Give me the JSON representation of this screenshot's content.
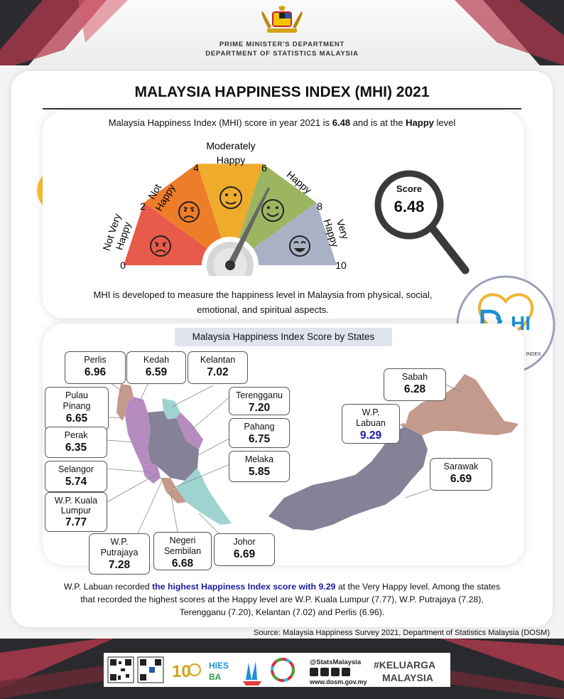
{
  "header": {
    "dept_line1": "PRIME MINISTER'S DEPARTMENT",
    "dept_line2": "DEPARTMENT OF STATISTICS MALAYSIA"
  },
  "title": "MALAYSIA HAPPINESS INDEX (MHI) 2021",
  "intro": {
    "prefix": "Malaysia Happiness Index (MHI) score in year 2021 is",
    "score": "6.48",
    "middle": "and is at the",
    "level": "Happy",
    "suffix": "level"
  },
  "gauge": {
    "value": 6.48,
    "min": 0,
    "max": 10,
    "ticks": [
      "0",
      "2",
      "4",
      "6",
      "8",
      "10"
    ],
    "bands": [
      {
        "label": "Not Very Happy",
        "color": "#e85a4a"
      },
      {
        "label": "Not Happy",
        "color": "#ee7d2a"
      },
      {
        "label": "Moderately Happy",
        "color": "#eeab2c"
      },
      {
        "label": "Happy",
        "color": "#9cb560"
      },
      {
        "label": "Very Happy",
        "color": "#a9b2c5"
      }
    ]
  },
  "score_box": {
    "label": "Score",
    "value": "6.48"
  },
  "description": "MHI is developed to measure the happiness level in Malaysia from physical, social, emotional, and spiritual aspects.",
  "mhi_logo": {
    "letters": "HI",
    "caption": "MALAYSIA HAPPINESS INDEX"
  },
  "states_title": "Malaysia Happiness Index Score by States",
  "states": {
    "perlis": {
      "name": "Perlis",
      "score": "6.96"
    },
    "kedah": {
      "name": "Kedah",
      "score": "6.59"
    },
    "kelantan": {
      "name": "Kelantan",
      "score": "7.02"
    },
    "pulau_pinang": {
      "name": "Pulau Pinang",
      "score": "6.65"
    },
    "terengganu": {
      "name": "Terengganu",
      "score": "7.20"
    },
    "perak": {
      "name": "Perak",
      "score": "6.35"
    },
    "pahang": {
      "name": "Pahang",
      "score": "6.75"
    },
    "melaka": {
      "name": "Melaka",
      "score": "5.85"
    },
    "selangor": {
      "name": "Selangor",
      "score": "5.74"
    },
    "kl": {
      "name": "W.P. Kuala Lumpur",
      "score": "7.77"
    },
    "putrajaya": {
      "name": "W.P. Putrajaya",
      "score": "7.28"
    },
    "negeri_sembilan": {
      "name": "Negeri Sembilan",
      "score": "6.68"
    },
    "johor": {
      "name": "Johor",
      "score": "6.69"
    },
    "sabah": {
      "name": "Sabah",
      "score": "6.28"
    },
    "labuan": {
      "name": "W.P. Labuan",
      "score": "9.29"
    },
    "sarawak": {
      "name": "Sarawak",
      "score": "6.69"
    }
  },
  "summary": {
    "part1": "W.P. Labuan recorded",
    "highlight": "the highest Happiness Index score with 9.29",
    "part2": "at the Very Happy level. Among the states that recorded the highest scores at the Happy level are W.P. Kuala Lumpur (7.77), W.P. Putrajaya (7.28), Terengganu (7.20), Kelantan (7.02) and Perlis (6.96)."
  },
  "source": "Source: Malaysia Happiness Survey 2021, Department of Statistics Malaysia (DOSM)",
  "footer": {
    "hies": "HIES",
    "ba": "BA",
    "social_handle": "@StatsMalaysia",
    "website": "www.dosm.gov.my",
    "keluarga1": "#KELUARGA",
    "keluarga2": "MALAYSIA"
  },
  "colors": {
    "map_pink": "#c49a8c",
    "map_mauve": "#b58bc0",
    "map_teal": "#9fd3cf",
    "map_grey": "#858196",
    "highlight_blue": "#1a1aa8"
  }
}
